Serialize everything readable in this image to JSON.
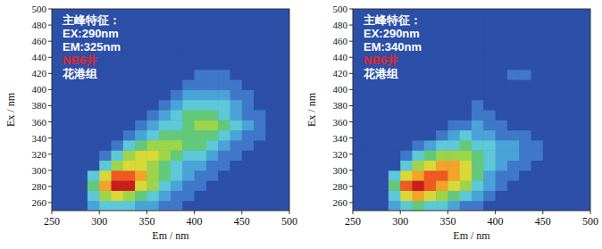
{
  "chart_data": [
    {
      "type": "heatmap",
      "x_label": "Em / nm",
      "y_label": "Ex / nm",
      "xlim": [
        250,
        500
      ],
      "ylim": [
        250,
        500
      ],
      "xticks": [
        250,
        300,
        350,
        400,
        450,
        500
      ],
      "yticks": [
        260,
        280,
        300,
        320,
        340,
        360,
        380,
        400,
        420,
        440,
        460,
        480,
        500
      ],
      "zlim": [
        0,
        9
      ],
      "x": [
        256.25,
        268.75,
        281.25,
        293.75,
        306.25,
        318.75,
        331.25,
        343.75,
        356.25,
        368.75,
        381.25,
        393.75,
        406.25,
        418.75,
        431.25,
        443.75,
        456.25,
        468.75,
        481.25,
        493.75
      ],
      "y": [
        256.25,
        268.75,
        281.25,
        293.75,
        306.25,
        318.75,
        331.25,
        343.75,
        356.25,
        368.75,
        381.25,
        393.75,
        406.25,
        418.75,
        431.25,
        443.75,
        456.25,
        468.75,
        481.25,
        493.75
      ],
      "cells": [
        [
          0,
          0,
          0,
          2,
          3,
          3,
          3,
          2,
          2,
          1,
          1,
          0,
          0,
          0,
          0,
          0,
          0,
          0,
          0,
          0
        ],
        [
          0,
          0,
          0,
          3,
          5,
          6,
          5,
          4,
          3,
          2,
          1,
          1,
          0,
          0,
          0,
          0,
          0,
          0,
          0,
          0
        ],
        [
          0,
          0,
          0,
          4,
          7,
          9,
          9,
          6,
          5,
          3,
          2,
          1,
          1,
          0,
          0,
          0,
          0,
          0,
          0,
          0
        ],
        [
          0,
          0,
          0,
          3,
          6,
          8,
          8,
          7,
          5,
          4,
          3,
          2,
          1,
          1,
          0,
          0,
          0,
          0,
          0,
          0
        ],
        [
          0,
          0,
          0,
          0,
          3,
          5,
          6,
          6,
          5,
          4,
          3,
          2,
          2,
          1,
          1,
          0,
          0,
          0,
          0,
          0
        ],
        [
          0,
          0,
          0,
          0,
          1,
          3,
          5,
          6,
          6,
          5,
          4,
          3,
          3,
          2,
          1,
          1,
          0,
          0,
          0,
          0
        ],
        [
          0,
          0,
          0,
          0,
          0,
          1,
          3,
          4,
          5,
          5,
          5,
          4,
          4,
          3,
          2,
          1,
          1,
          0,
          0,
          0
        ],
        [
          0,
          0,
          0,
          0,
          0,
          0,
          1,
          2,
          3,
          4,
          4,
          4,
          4,
          4,
          3,
          2,
          1,
          1,
          0,
          0
        ],
        [
          0,
          0,
          0,
          0,
          0,
          0,
          0,
          1,
          2,
          3,
          3,
          4,
          5,
          5,
          4,
          3,
          2,
          1,
          0,
          0
        ],
        [
          0,
          0,
          0,
          0,
          0,
          0,
          0,
          0,
          1,
          2,
          3,
          4,
          4,
          4,
          3,
          2,
          1,
          1,
          0,
          0
        ],
        [
          0,
          0,
          0,
          0,
          0,
          0,
          0,
          0,
          0,
          1,
          2,
          3,
          3,
          3,
          3,
          2,
          1,
          0,
          0,
          0
        ],
        [
          0,
          0,
          0,
          0,
          0,
          0,
          0,
          0,
          0,
          0,
          1,
          2,
          2,
          2,
          2,
          1,
          1,
          0,
          0,
          0
        ],
        [
          0,
          0,
          0,
          0,
          0,
          0,
          0,
          0,
          0,
          0,
          0,
          1,
          1,
          1,
          1,
          1,
          0,
          0,
          0,
          0
        ],
        [
          0,
          0,
          0,
          0,
          0,
          0,
          0,
          0,
          0,
          0,
          0,
          0,
          1,
          1,
          1,
          0,
          0,
          0,
          0,
          0
        ],
        [
          0,
          0,
          0,
          0,
          0,
          0,
          0,
          0,
          0,
          0,
          0,
          0,
          0,
          0,
          0,
          0,
          0,
          0,
          0,
          0
        ],
        [
          0,
          0,
          0,
          0,
          0,
          0,
          0,
          0,
          0,
          0,
          0,
          0,
          0,
          0,
          0,
          0,
          0,
          0,
          0,
          0
        ],
        [
          0,
          0,
          0,
          0,
          0,
          0,
          0,
          0,
          0,
          0,
          0,
          0,
          0,
          0,
          0,
          0,
          0,
          0,
          0,
          0
        ],
        [
          0,
          0,
          0,
          0,
          0,
          0,
          0,
          0,
          0,
          0,
          0,
          0,
          0,
          0,
          0,
          0,
          0,
          0,
          0,
          0
        ],
        [
          0,
          0,
          0,
          0,
          0,
          0,
          0,
          0,
          0,
          0,
          0,
          0,
          0,
          0,
          0,
          0,
          0,
          0,
          0,
          0
        ],
        [
          0,
          0,
          0,
          0,
          0,
          0,
          0,
          0,
          0,
          0,
          0,
          0,
          0,
          0,
          0,
          0,
          0,
          0,
          0,
          0
        ]
      ],
      "annotations": [
        {
          "text": "主峰特征：",
          "color": "#ffffff"
        },
        {
          "text": "EX:290nm",
          "color": "#ffffff"
        },
        {
          "text": "EM:325nm",
          "color": "#ffffff"
        },
        {
          "text": "NB6井",
          "color": "#e0262a"
        },
        {
          "text": "花港组",
          "color": "#ffffff"
        }
      ]
    },
    {
      "type": "heatmap",
      "x_label": "Em / nm",
      "y_label": "Ex / nm",
      "xlim": [
        250,
        500
      ],
      "ylim": [
        250,
        500
      ],
      "xticks": [
        250,
        300,
        350,
        400,
        450,
        500
      ],
      "yticks": [
        260,
        280,
        300,
        320,
        340,
        360,
        380,
        400,
        420,
        440,
        460,
        480,
        500
      ],
      "zlim": [
        0,
        9
      ],
      "x": [
        256.25,
        268.75,
        281.25,
        293.75,
        306.25,
        318.75,
        331.25,
        343.75,
        356.25,
        368.75,
        381.25,
        393.75,
        406.25,
        418.75,
        431.25,
        443.75,
        456.25,
        468.75,
        481.25,
        493.75
      ],
      "y": [
        256.25,
        268.75,
        281.25,
        293.75,
        306.25,
        318.75,
        331.25,
        343.75,
        356.25,
        368.75,
        381.25,
        393.75,
        406.25,
        418.75,
        431.25,
        443.75,
        456.25,
        468.75,
        481.25,
        493.75
      ],
      "cells": [
        [
          0,
          0,
          0,
          2,
          3,
          4,
          3,
          3,
          2,
          1,
          1,
          0,
          0,
          0,
          0,
          0,
          0,
          0,
          0,
          0
        ],
        [
          0,
          0,
          0,
          3,
          6,
          7,
          6,
          5,
          4,
          3,
          2,
          1,
          0,
          0,
          0,
          0,
          0,
          0,
          0,
          0
        ],
        [
          0,
          0,
          0,
          4,
          8,
          9,
          8,
          7,
          6,
          5,
          3,
          2,
          1,
          0,
          0,
          0,
          0,
          0,
          0,
          0
        ],
        [
          0,
          0,
          0,
          3,
          6,
          7,
          8,
          8,
          7,
          6,
          4,
          2,
          1,
          1,
          0,
          0,
          0,
          0,
          0,
          0
        ],
        [
          0,
          0,
          0,
          0,
          3,
          5,
          6,
          7,
          7,
          6,
          4,
          3,
          2,
          1,
          1,
          0,
          0,
          0,
          0,
          0
        ],
        [
          0,
          0,
          0,
          0,
          1,
          3,
          4,
          5,
          5,
          5,
          4,
          3,
          2,
          2,
          1,
          1,
          0,
          0,
          0,
          0
        ],
        [
          0,
          0,
          0,
          0,
          0,
          1,
          2,
          3,
          3,
          4,
          3,
          3,
          2,
          2,
          1,
          1,
          0,
          0,
          0,
          0
        ],
        [
          0,
          0,
          0,
          0,
          0,
          0,
          0,
          1,
          2,
          3,
          2,
          2,
          1,
          1,
          1,
          0,
          0,
          0,
          0,
          0
        ],
        [
          0,
          0,
          0,
          0,
          0,
          0,
          0,
          0,
          1,
          1,
          2,
          1,
          1,
          0,
          0,
          0,
          0,
          0,
          0,
          0
        ],
        [
          0,
          0,
          0,
          0,
          0,
          0,
          0,
          0,
          0,
          0,
          1,
          1,
          0,
          0,
          0,
          0,
          0,
          0,
          0,
          0
        ],
        [
          0,
          0,
          0,
          0,
          0,
          0,
          0,
          0,
          0,
          0,
          1,
          0,
          0,
          0,
          0,
          0,
          0,
          0,
          0,
          0
        ],
        [
          0,
          0,
          0,
          0,
          0,
          0,
          0,
          0,
          0,
          0,
          0,
          0,
          0,
          0,
          0,
          0,
          0,
          0,
          0,
          0
        ],
        [
          0,
          0,
          0,
          0,
          0,
          0,
          0,
          0,
          0,
          0,
          0,
          0,
          0,
          0,
          0,
          0,
          0,
          0,
          0,
          0
        ],
        [
          0,
          0,
          0,
          0,
          0,
          0,
          0,
          0,
          0,
          0,
          0,
          0,
          0,
          1,
          1,
          0,
          0,
          0,
          0,
          0
        ],
        [
          0,
          0,
          0,
          0,
          0,
          0,
          0,
          0,
          0,
          0,
          0,
          0,
          0,
          0,
          0,
          0,
          0,
          0,
          0,
          0
        ],
        [
          0,
          0,
          0,
          0,
          0,
          0,
          0,
          0,
          0,
          0,
          0,
          0,
          0,
          0,
          0,
          0,
          0,
          0,
          0,
          0
        ],
        [
          0,
          0,
          0,
          0,
          0,
          0,
          0,
          0,
          0,
          0,
          0,
          0,
          0,
          0,
          0,
          0,
          0,
          0,
          0,
          0
        ],
        [
          0,
          0,
          0,
          0,
          0,
          0,
          0,
          0,
          0,
          0,
          0,
          0,
          0,
          0,
          0,
          0,
          0,
          0,
          0,
          0
        ],
        [
          0,
          0,
          0,
          0,
          0,
          0,
          0,
          0,
          0,
          0,
          0,
          0,
          0,
          0,
          0,
          0,
          0,
          0,
          0,
          0
        ],
        [
          0,
          0,
          0,
          0,
          0,
          0,
          0,
          0,
          0,
          0,
          0,
          0,
          0,
          0,
          0,
          0,
          0,
          0,
          0,
          0
        ]
      ],
      "annotations": [
        {
          "text": "主峰特征：",
          "color": "#ffffff"
        },
        {
          "text": "EX:290nm",
          "color": "#ffffff"
        },
        {
          "text": "EM:340nm",
          "color": "#ffffff"
        },
        {
          "text": "NB6井",
          "color": "#e0262a"
        },
        {
          "text": "花港组",
          "color": "#ffffff"
        }
      ]
    }
  ]
}
